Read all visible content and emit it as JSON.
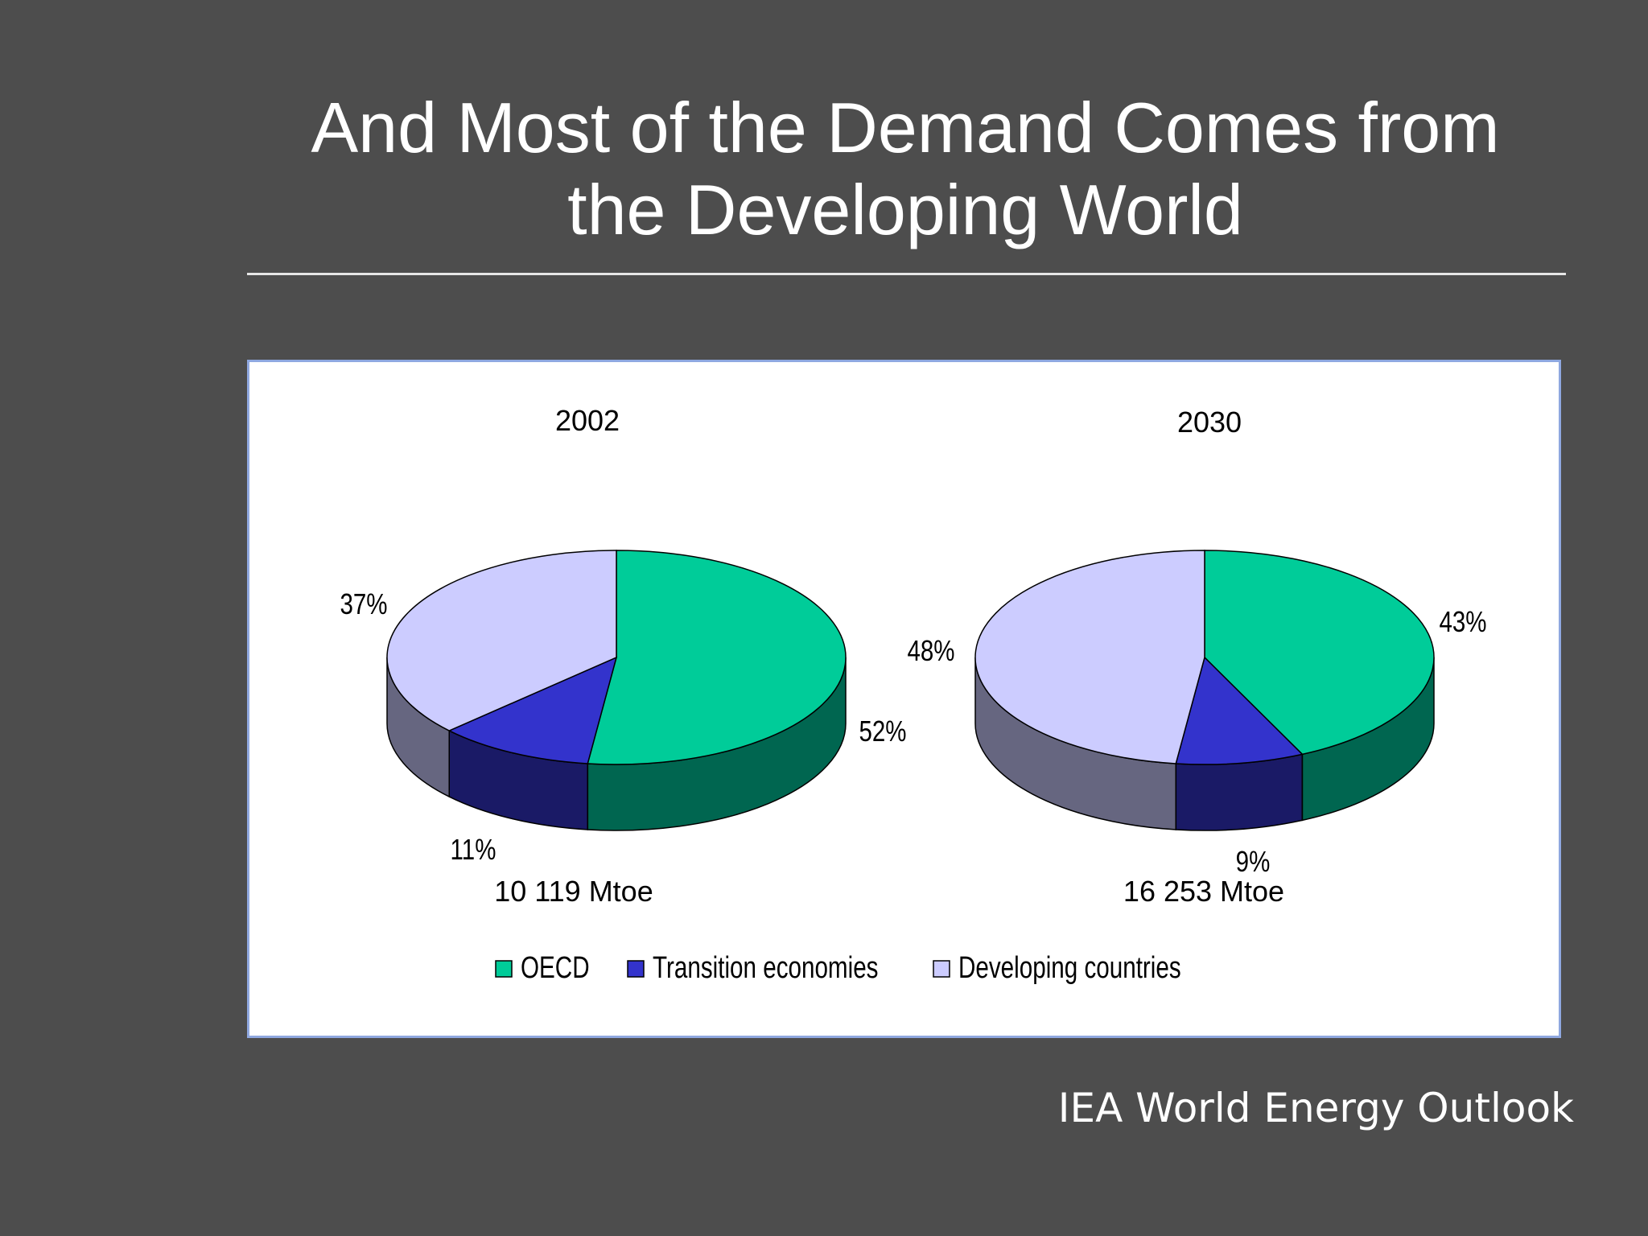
{
  "slide": {
    "title_line1": "And Most of the Demand Comes from",
    "title_line2": "the Developing World",
    "source": "IEA World Energy Outlook"
  },
  "chart_data": [
    {
      "type": "pie",
      "title": "2002",
      "total_label": "10 119 Mtoe",
      "categories": [
        "OECD",
        "Transition economies",
        "Developing countries"
      ],
      "values": [
        52,
        11,
        37
      ],
      "value_labels": [
        "52%",
        "11%",
        "37%"
      ]
    },
    {
      "type": "pie",
      "title": "2030",
      "total_label": "16 253 Mtoe",
      "categories": [
        "OECD",
        "Transition economies",
        "Developing countries"
      ],
      "values": [
        43,
        9,
        48
      ],
      "value_labels": [
        "43%",
        "9%",
        "48%"
      ]
    }
  ],
  "legend": {
    "placement": "bottom-center",
    "items": [
      {
        "label": "OECD",
        "color": "#00cc99"
      },
      {
        "label": "Transition economies",
        "color": "#3333cc"
      },
      {
        "label": "Developing countries",
        "color": "#ccccff"
      }
    ]
  },
  "colors": {
    "background": "#4d4d4d",
    "panel": "#ffffff",
    "series_top": [
      "#00cc99",
      "#3333cc",
      "#ccccff"
    ],
    "series_side": [
      "#006650",
      "#1a1a66",
      "#666680"
    ]
  }
}
